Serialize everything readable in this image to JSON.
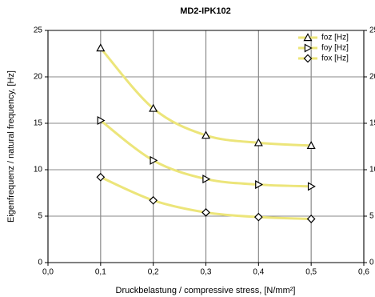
{
  "chart_data": {
    "type": "line",
    "title": "MD2-IPK102",
    "x_label": "Druckbelastung / compressive stress, [N/mm²]",
    "y_label": "Eigenfrequenz / natural frequency, [Hz]",
    "x": [
      0.1,
      0.2,
      0.3,
      0.4,
      0.5
    ],
    "series": [
      {
        "name": "foz [Hz]",
        "color": "#ece57a",
        "marker": "triangle-up",
        "values": [
          23.1,
          16.6,
          13.7,
          12.9,
          12.6
        ]
      },
      {
        "name": "foy [Hz]",
        "color": "#ece57a",
        "marker": "triangle-right",
        "values": [
          15.3,
          11.0,
          9.0,
          8.4,
          8.2
        ]
      },
      {
        "name": "fox [Hz]",
        "color": "#ece57a",
        "marker": "diamond",
        "values": [
          9.2,
          6.7,
          5.4,
          4.9,
          4.7
        ]
      }
    ],
    "xlim": [
      0,
      0.6
    ],
    "xticks": [
      {
        "value": 0,
        "label": "0,0"
      },
      {
        "value": 0.1,
        "label": "0,1"
      },
      {
        "value": 0.2,
        "label": "0,2"
      },
      {
        "value": 0.3,
        "label": "0,3"
      },
      {
        "value": 0.4,
        "label": "0,4"
      },
      {
        "value": 0.5,
        "label": "0,5"
      },
      {
        "value": 0.6,
        "label": "0,6"
      }
    ],
    "ylim": [
      0,
      25
    ],
    "yticks": [
      0,
      5,
      10,
      15,
      20,
      25
    ],
    "y2lim": [
      0,
      25
    ],
    "y2ticks": [
      0,
      5,
      10,
      15,
      20,
      25
    ],
    "grid": true,
    "legend": "top-right"
  }
}
